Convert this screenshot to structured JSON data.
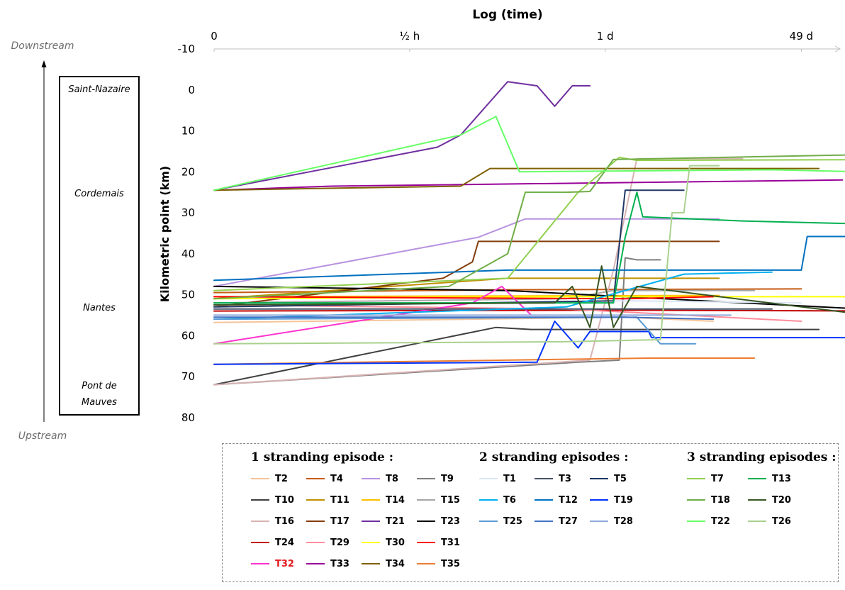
{
  "chart_data": {
    "type": "line",
    "title": "Log (time)",
    "xlabel": "Log (time)",
    "ylabel": "Kilometric point (km)",
    "x_scale": "log",
    "x_ticks": [
      {
        "label": "0",
        "t": 0
      },
      {
        "label": "½ h",
        "t": 0.333
      },
      {
        "label": "1 d",
        "t": 0.666
      },
      {
        "label": "49 d",
        "t": 1.0
      }
    ],
    "y_axis_inverted": true,
    "yticks": [
      -10,
      0,
      10,
      20,
      30,
      40,
      50,
      60,
      70,
      80
    ],
    "ylim": [
      -10,
      80
    ],
    "side_labels": {
      "top": "Downstream",
      "bottom": "Upstream",
      "places": [
        {
          "name": "Saint-Nazaire",
          "km": 0
        },
        {
          "name": "Cordemais",
          "km": 25
        },
        {
          "name": "Nantes",
          "km": 53
        },
        {
          "name": "Pont de",
          "km": 72
        },
        {
          "name": "Mauves",
          "km": 76
        }
      ]
    },
    "legend_groups": [
      {
        "title": "1 stranding episode :",
        "columns": 4,
        "items": [
          "T2",
          "T4",
          "T8",
          "T9",
          "T10",
          "T11",
          "T14",
          "T15",
          "T16",
          "T17",
          "T21",
          "T23",
          "T24",
          "T29",
          "T30",
          "T31",
          "T32",
          "T33",
          "T34",
          "T35"
        ]
      },
      {
        "title": "2 stranding episodes :",
        "columns": 3,
        "items": [
          "T1",
          "T3",
          "T5",
          "T6",
          "T12",
          "T19",
          "T25",
          "T27",
          "T28"
        ]
      },
      {
        "title": "3 stranding episodes :",
        "columns": 2,
        "items": [
          "T7",
          "T13",
          "T18",
          "T20",
          "T22",
          "T26"
        ]
      }
    ],
    "highlight": {
      "series": "T32",
      "color": "#e31a1c"
    },
    "series": [
      {
        "name": "T2",
        "color": "#f4c49a",
        "points": [
          [
            0,
            56.8
          ],
          [
            0.7,
            55.5
          ],
          [
            0.85,
            56.5
          ]
        ]
      },
      {
        "name": "T4",
        "color": "#c55a11",
        "points": [
          [
            0,
            49.5
          ],
          [
            0.5,
            48.8
          ],
          [
            1.0,
            48.6
          ]
        ]
      },
      {
        "name": "T8",
        "color": "#b893e0",
        "points": [
          [
            0,
            48
          ],
          [
            0.45,
            36
          ],
          [
            0.53,
            31.5
          ],
          [
            0.86,
            31.5
          ]
        ]
      },
      {
        "name": "T9",
        "color": "#7f7f7f",
        "points": [
          [
            0,
            72
          ],
          [
            0.62,
            66.5
          ],
          [
            0.69,
            66
          ],
          [
            0.7,
            41
          ],
          [
            0.72,
            41.5
          ],
          [
            0.76,
            41.5
          ]
        ]
      },
      {
        "name": "T10",
        "color": "#404040",
        "points": [
          [
            0,
            72
          ],
          [
            0.48,
            58
          ],
          [
            0.54,
            58.5
          ],
          [
            1.03,
            58.5
          ]
        ]
      },
      {
        "name": "T11",
        "color": "#bf9000",
        "points": [
          [
            0,
            51
          ],
          [
            0.5,
            46
          ],
          [
            0.62,
            46
          ],
          [
            0.86,
            46
          ]
        ]
      },
      {
        "name": "T14",
        "color": "#ffc000",
        "points": [
          [
            0,
            50.5
          ],
          [
            0.8,
            50.2
          ],
          [
            0.86,
            50.2
          ]
        ]
      },
      {
        "name": "T15",
        "color": "#a6a6a6",
        "points": [
          [
            0,
            52
          ],
          [
            0.6,
            51
          ],
          [
            0.68,
            49
          ],
          [
            0.92,
            49
          ]
        ]
      },
      {
        "name": "T16",
        "color": "#d9b3b3",
        "points": [
          [
            0,
            72
          ],
          [
            0.64,
            66
          ],
          [
            0.68,
            44
          ],
          [
            0.72,
            16.8
          ],
          [
            0.9,
            16.8
          ]
        ]
      },
      {
        "name": "T17",
        "color": "#843c0c",
        "points": [
          [
            0,
            53
          ],
          [
            0.39,
            46
          ],
          [
            0.44,
            42
          ],
          [
            0.45,
            37
          ],
          [
            0.86,
            37
          ]
        ]
      },
      {
        "name": "T21",
        "color": "#7030a0",
        "points": [
          [
            0,
            24.5
          ],
          [
            0.38,
            14
          ],
          [
            0.42,
            11
          ],
          [
            0.5,
            -2
          ],
          [
            0.55,
            -1
          ],
          [
            0.58,
            4
          ],
          [
            0.61,
            -1
          ],
          [
            0.64,
            -1
          ]
        ]
      },
      {
        "name": "T23",
        "color": "#000000",
        "points": [
          [
            0,
            48
          ],
          [
            0.5,
            49
          ],
          [
            0.9,
            52
          ],
          [
            1.2,
            54.2
          ]
        ]
      },
      {
        "name": "T24",
        "color": "#c00000",
        "points": [
          [
            0,
            54
          ],
          [
            0.7,
            53.8
          ],
          [
            1.15,
            54
          ]
        ]
      },
      {
        "name": "T29",
        "color": "#ff8c9b",
        "points": [
          [
            0,
            52.5
          ],
          [
            0.6,
            53.5
          ],
          [
            1.0,
            56.5
          ]
        ]
      },
      {
        "name": "T30",
        "color": "#ffff00",
        "points": [
          [
            0,
            51
          ],
          [
            0.6,
            50.5
          ],
          [
            1.12,
            50.5
          ]
        ]
      },
      {
        "name": "T31",
        "color": "#ff0000",
        "points": [
          [
            0,
            50.5
          ],
          [
            0.7,
            51
          ],
          [
            0.85,
            50.5
          ]
        ]
      },
      {
        "name": "T32",
        "color": "#ff33cc",
        "points": [
          [
            0,
            62
          ],
          [
            0.44,
            52
          ],
          [
            0.49,
            48
          ],
          [
            0.54,
            55
          ]
        ]
      },
      {
        "name": "T33",
        "color": "#990099",
        "points": [
          [
            0,
            24.5
          ],
          [
            0.2,
            23.5
          ],
          [
            1.07,
            22
          ]
        ]
      },
      {
        "name": "T34",
        "color": "#7f6000",
        "points": [
          [
            0,
            24.5
          ],
          [
            0.42,
            23.5
          ],
          [
            0.47,
            19.2
          ],
          [
            1.03,
            19.2
          ]
        ]
      },
      {
        "name": "T35",
        "color": "#ed7d31",
        "points": [
          [
            0,
            67
          ],
          [
            0.74,
            65.5
          ],
          [
            0.92,
            65.5
          ]
        ]
      },
      {
        "name": "T1",
        "color": "#dbe7f5",
        "points": [
          [
            0,
            53
          ],
          [
            0.7,
            51.5
          ],
          [
            1.0,
            52
          ]
        ]
      },
      {
        "name": "T3",
        "color": "#44546a",
        "points": [
          [
            0,
            53.5
          ],
          [
            0.8,
            53.5
          ],
          [
            0.95,
            53.5
          ]
        ]
      },
      {
        "name": "T5",
        "color": "#1f3864",
        "points": [
          [
            0,
            53
          ],
          [
            0.68,
            51.5
          ],
          [
            0.7,
            24.5
          ],
          [
            0.8,
            24.5
          ]
        ]
      },
      {
        "name": "T6",
        "color": "#00b0f0",
        "points": [
          [
            0,
            56
          ],
          [
            0.6,
            53
          ],
          [
            0.8,
            45
          ],
          [
            0.95,
            44.5
          ]
        ]
      },
      {
        "name": "T12",
        "color": "#0070c0",
        "points": [
          [
            0,
            46.5
          ],
          [
            0.5,
            44
          ],
          [
            1.0,
            44
          ],
          [
            1.01,
            35.8
          ],
          [
            1.2,
            35.8
          ]
        ]
      },
      {
        "name": "T19",
        "color": "#0033ff",
        "points": [
          [
            0,
            67
          ],
          [
            0.55,
            66.5
          ],
          [
            0.58,
            56.5
          ],
          [
            0.62,
            63
          ],
          [
            0.64,
            59
          ],
          [
            0.74,
            59
          ],
          [
            0.745,
            60.5
          ],
          [
            1.1,
            60.5
          ]
        ]
      },
      {
        "name": "T25",
        "color": "#5b9bd5",
        "points": [
          [
            0,
            56
          ],
          [
            0.72,
            55.5
          ],
          [
            0.76,
            62
          ],
          [
            0.82,
            62
          ]
        ]
      },
      {
        "name": "T27",
        "color": "#4472c4",
        "points": [
          [
            0,
            55.5
          ],
          [
            0.7,
            55.5
          ],
          [
            0.85,
            56
          ]
        ]
      },
      {
        "name": "T28",
        "color": "#8faadc",
        "points": [
          [
            0,
            55
          ],
          [
            0.7,
            55
          ],
          [
            0.88,
            55
          ]
        ]
      },
      {
        "name": "T7",
        "color": "#92d050",
        "points": [
          [
            0,
            49
          ],
          [
            0.5,
            46
          ],
          [
            0.62,
            25
          ],
          [
            0.69,
            16.5
          ],
          [
            0.72,
            17.2
          ],
          [
            1.2,
            17
          ]
        ]
      },
      {
        "name": "T13",
        "color": "#00b050",
        "points": [
          [
            0,
            52
          ],
          [
            0.68,
            52
          ],
          [
            0.7,
            36
          ],
          [
            0.72,
            25
          ],
          [
            0.73,
            31
          ],
          [
            0.9,
            32
          ],
          [
            1.18,
            33
          ]
        ]
      },
      {
        "name": "T18",
        "color": "#70ad47",
        "points": [
          [
            0,
            51
          ],
          [
            0.4,
            48
          ],
          [
            0.5,
            40
          ],
          [
            0.53,
            25
          ],
          [
            0.6,
            25
          ],
          [
            0.64,
            24.8
          ],
          [
            0.68,
            17
          ],
          [
            1.22,
            15.5
          ]
        ]
      },
      {
        "name": "T20",
        "color": "#375623",
        "points": [
          [
            0,
            52.5
          ],
          [
            0.58,
            52
          ],
          [
            0.61,
            48
          ],
          [
            0.64,
            58
          ],
          [
            0.66,
            43
          ],
          [
            0.68,
            58
          ],
          [
            0.72,
            48
          ],
          [
            1.17,
            56
          ]
        ]
      },
      {
        "name": "T22",
        "color": "#66ff66",
        "points": [
          [
            0,
            24.5
          ],
          [
            0.42,
            11
          ],
          [
            0.48,
            6.5
          ],
          [
            0.52,
            20
          ],
          [
            0.95,
            19.5
          ],
          [
            1.25,
            20.5
          ]
        ]
      },
      {
        "name": "T26",
        "color": "#a9d18e",
        "points": [
          [
            0,
            62
          ],
          [
            0.6,
            61.5
          ],
          [
            0.76,
            61
          ],
          [
            0.78,
            30
          ],
          [
            0.8,
            30
          ],
          [
            0.81,
            18.5
          ],
          [
            0.86,
            18.5
          ]
        ]
      }
    ]
  }
}
